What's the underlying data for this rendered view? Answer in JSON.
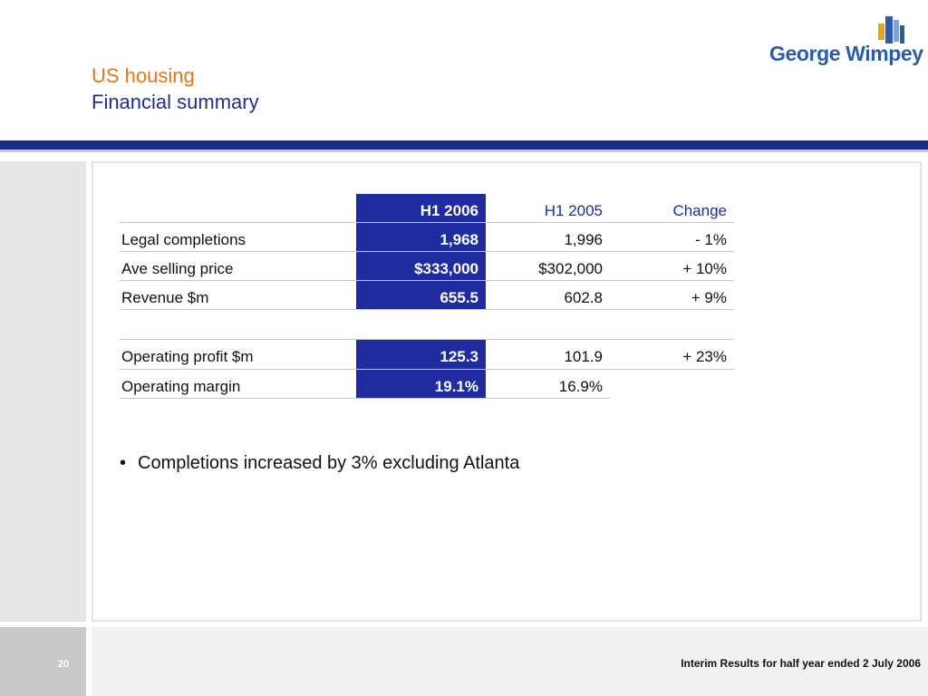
{
  "header": {
    "title_line1": "US housing",
    "title_line2": "Financial summary",
    "logo_text": "George Wimpey"
  },
  "table": {
    "columns": [
      "H1 2006",
      "H1 2005",
      "Change"
    ],
    "rows": [
      {
        "label": "Legal completions",
        "h1_2006": "1,968",
        "h1_2005": "1,996",
        "change": "- 1%"
      },
      {
        "label": "Ave selling price",
        "h1_2006": "$333,000",
        "h1_2005": "$302,000",
        "change": "+ 10%"
      },
      {
        "label": "Revenue $m",
        "h1_2006": "655.5",
        "h1_2005": "602.8",
        "change": "+ 9%"
      },
      {
        "label": "Operating profit $m",
        "h1_2006": "125.3",
        "h1_2005": "101.9",
        "change": "+ 23%"
      },
      {
        "label": "Operating margin",
        "h1_2006": "19.1%",
        "h1_2005": "16.9%",
        "change": ""
      }
    ]
  },
  "bullets": [
    "Completions increased by 3% excluding Atlanta"
  ],
  "footer": {
    "page_number": "20",
    "text": "Interim Results for half year ended 2 July 2006"
  },
  "colors": {
    "title_orange": "#e8731a",
    "title_blue": "#1c2e9a",
    "highlight_column": "#1f2ca0",
    "rule_dark": "#1f2a8c"
  }
}
